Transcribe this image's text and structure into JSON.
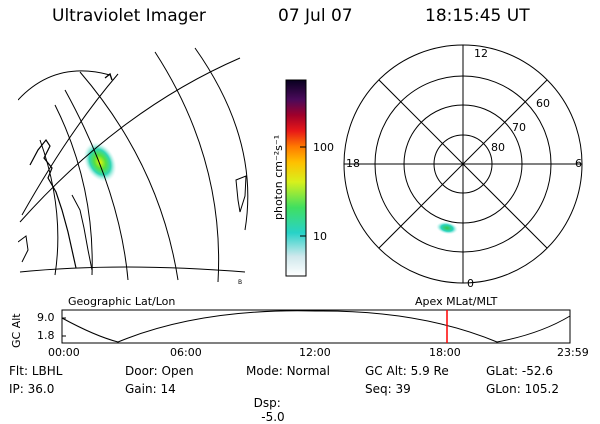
{
  "header": {
    "instrument": "Ultraviolet Imager",
    "date": "07 Jul 07",
    "time": "18:15:45 UT"
  },
  "colorbar": {
    "unit_label": "photon cm⁻²s⁻¹",
    "ticks": [
      "100",
      "10"
    ]
  },
  "polar": {
    "mlt_labels": {
      "top": "12",
      "left": "18",
      "right": "6",
      "bottom": "0"
    },
    "lat_labels": [
      "60",
      "70",
      "80"
    ]
  },
  "map": {
    "label": "Geographic Lat/Lon",
    "corner_mark": "B",
    "apex_label": "Apex  MLat/MLT"
  },
  "altitude_plot": {
    "ylabel": "GC Alt",
    "yticks": [
      "9.0",
      "1.8"
    ],
    "xticks": [
      "00:00",
      "06:00",
      "12:00",
      "18:00",
      "23:59"
    ],
    "marker_color": "#ff0000"
  },
  "info": {
    "row1": [
      {
        "label": "Flt:",
        "value": "LBHL"
      },
      {
        "label": "Door:",
        "value": "Open"
      },
      {
        "label": "Mode:",
        "value": "Normal"
      },
      {
        "label": "GC Alt:",
        "value": "5.9 Re"
      },
      {
        "label": "GLat:",
        "value": "-52.6"
      }
    ],
    "row2": [
      {
        "label": "IP:",
        "value": "36.0"
      },
      {
        "label": "Gain:",
        "value": "14"
      },
      {
        "label": "Dsp:",
        "value": "  -5.0"
      },
      {
        "label": "Seq:",
        "value": "39"
      },
      {
        "label": "GLon:",
        "value": "105.2"
      }
    ]
  }
}
